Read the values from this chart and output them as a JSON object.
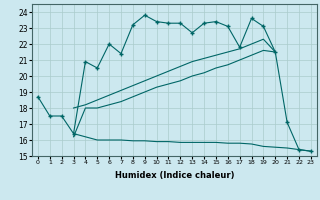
{
  "bg_color": "#cce8ef",
  "grid_color": "#aacccc",
  "line_color": "#006666",
  "xlabel": "Humidex (Indice chaleur)",
  "xlim": [
    -0.5,
    23.5
  ],
  "ylim": [
    15,
    24.5
  ],
  "yticks": [
    15,
    16,
    17,
    18,
    19,
    20,
    21,
    22,
    23,
    24
  ],
  "xticks": [
    0,
    1,
    2,
    3,
    4,
    5,
    6,
    7,
    8,
    9,
    10,
    11,
    12,
    13,
    14,
    15,
    16,
    17,
    18,
    19,
    20,
    21,
    22,
    23
  ],
  "line1_x": [
    0,
    1,
    2,
    3,
    4,
    5,
    6,
    7,
    8,
    9,
    10,
    11,
    12,
    13,
    14,
    15,
    16,
    17,
    18,
    19,
    20,
    21,
    22,
    23
  ],
  "line1_y": [
    18.7,
    17.5,
    17.5,
    16.4,
    20.9,
    20.5,
    22.0,
    21.4,
    23.2,
    23.8,
    23.4,
    23.3,
    23.3,
    22.7,
    23.3,
    23.4,
    23.1,
    21.8,
    23.6,
    23.1,
    21.5,
    17.1,
    15.4,
    15.3
  ],
  "line2_x": [
    3,
    4,
    5,
    6,
    7,
    8,
    9,
    10,
    11,
    12,
    13,
    14,
    15,
    16,
    17,
    18,
    19,
    20
  ],
  "line2_y": [
    18.0,
    18.2,
    18.5,
    18.8,
    19.1,
    19.4,
    19.7,
    20.0,
    20.3,
    20.6,
    20.9,
    21.1,
    21.3,
    21.5,
    21.7,
    22.0,
    22.3,
    21.5
  ],
  "line3_x": [
    3,
    4,
    5,
    6,
    7,
    8,
    9,
    10,
    11,
    12,
    13,
    14,
    15,
    16,
    17,
    18,
    19,
    20
  ],
  "line3_y": [
    16.2,
    18.0,
    18.0,
    18.2,
    18.4,
    18.7,
    19.0,
    19.3,
    19.5,
    19.7,
    20.0,
    20.2,
    20.5,
    20.7,
    21.0,
    21.3,
    21.6,
    21.5
  ],
  "line4_x": [
    3,
    4,
    5,
    6,
    7,
    8,
    9,
    10,
    11,
    12,
    13,
    14,
    15,
    16,
    17,
    18,
    19,
    20,
    21,
    22,
    23
  ],
  "line4_y": [
    16.4,
    16.2,
    16.0,
    16.0,
    16.0,
    15.95,
    15.95,
    15.9,
    15.9,
    15.85,
    15.85,
    15.85,
    15.85,
    15.8,
    15.8,
    15.75,
    15.6,
    15.55,
    15.5,
    15.4,
    15.3
  ]
}
